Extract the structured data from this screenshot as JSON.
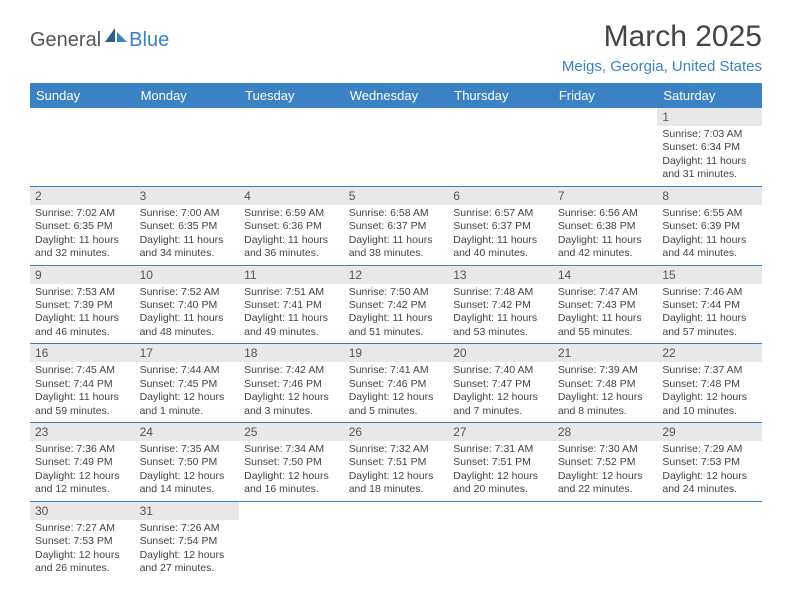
{
  "logo": {
    "general": "General",
    "blue": "Blue"
  },
  "title": "March 2025",
  "location": "Meigs, Georgia, United States",
  "day_headers": [
    "Sunday",
    "Monday",
    "Tuesday",
    "Wednesday",
    "Thursday",
    "Friday",
    "Saturday"
  ],
  "colors": {
    "header_bg": "#3b82c4",
    "header_text": "#ffffff",
    "daynum_bg": "#e8e8e8",
    "border": "#3b82c4",
    "accent": "#3b82c4"
  },
  "weeks": [
    [
      null,
      null,
      null,
      null,
      null,
      null,
      {
        "n": "1",
        "sunrise": "Sunrise: 7:03 AM",
        "sunset": "Sunset: 6:34 PM",
        "daylight": "Daylight: 11 hours and 31 minutes."
      }
    ],
    [
      {
        "n": "2",
        "sunrise": "Sunrise: 7:02 AM",
        "sunset": "Sunset: 6:35 PM",
        "daylight": "Daylight: 11 hours and 32 minutes."
      },
      {
        "n": "3",
        "sunrise": "Sunrise: 7:00 AM",
        "sunset": "Sunset: 6:35 PM",
        "daylight": "Daylight: 11 hours and 34 minutes."
      },
      {
        "n": "4",
        "sunrise": "Sunrise: 6:59 AM",
        "sunset": "Sunset: 6:36 PM",
        "daylight": "Daylight: 11 hours and 36 minutes."
      },
      {
        "n": "5",
        "sunrise": "Sunrise: 6:58 AM",
        "sunset": "Sunset: 6:37 PM",
        "daylight": "Daylight: 11 hours and 38 minutes."
      },
      {
        "n": "6",
        "sunrise": "Sunrise: 6:57 AM",
        "sunset": "Sunset: 6:37 PM",
        "daylight": "Daylight: 11 hours and 40 minutes."
      },
      {
        "n": "7",
        "sunrise": "Sunrise: 6:56 AM",
        "sunset": "Sunset: 6:38 PM",
        "daylight": "Daylight: 11 hours and 42 minutes."
      },
      {
        "n": "8",
        "sunrise": "Sunrise: 6:55 AM",
        "sunset": "Sunset: 6:39 PM",
        "daylight": "Daylight: 11 hours and 44 minutes."
      }
    ],
    [
      {
        "n": "9",
        "sunrise": "Sunrise: 7:53 AM",
        "sunset": "Sunset: 7:39 PM",
        "daylight": "Daylight: 11 hours and 46 minutes."
      },
      {
        "n": "10",
        "sunrise": "Sunrise: 7:52 AM",
        "sunset": "Sunset: 7:40 PM",
        "daylight": "Daylight: 11 hours and 48 minutes."
      },
      {
        "n": "11",
        "sunrise": "Sunrise: 7:51 AM",
        "sunset": "Sunset: 7:41 PM",
        "daylight": "Daylight: 11 hours and 49 minutes."
      },
      {
        "n": "12",
        "sunrise": "Sunrise: 7:50 AM",
        "sunset": "Sunset: 7:42 PM",
        "daylight": "Daylight: 11 hours and 51 minutes."
      },
      {
        "n": "13",
        "sunrise": "Sunrise: 7:48 AM",
        "sunset": "Sunset: 7:42 PM",
        "daylight": "Daylight: 11 hours and 53 minutes."
      },
      {
        "n": "14",
        "sunrise": "Sunrise: 7:47 AM",
        "sunset": "Sunset: 7:43 PM",
        "daylight": "Daylight: 11 hours and 55 minutes."
      },
      {
        "n": "15",
        "sunrise": "Sunrise: 7:46 AM",
        "sunset": "Sunset: 7:44 PM",
        "daylight": "Daylight: 11 hours and 57 minutes."
      }
    ],
    [
      {
        "n": "16",
        "sunrise": "Sunrise: 7:45 AM",
        "sunset": "Sunset: 7:44 PM",
        "daylight": "Daylight: 11 hours and 59 minutes."
      },
      {
        "n": "17",
        "sunrise": "Sunrise: 7:44 AM",
        "sunset": "Sunset: 7:45 PM",
        "daylight": "Daylight: 12 hours and 1 minute."
      },
      {
        "n": "18",
        "sunrise": "Sunrise: 7:42 AM",
        "sunset": "Sunset: 7:46 PM",
        "daylight": "Daylight: 12 hours and 3 minutes."
      },
      {
        "n": "19",
        "sunrise": "Sunrise: 7:41 AM",
        "sunset": "Sunset: 7:46 PM",
        "daylight": "Daylight: 12 hours and 5 minutes."
      },
      {
        "n": "20",
        "sunrise": "Sunrise: 7:40 AM",
        "sunset": "Sunset: 7:47 PM",
        "daylight": "Daylight: 12 hours and 7 minutes."
      },
      {
        "n": "21",
        "sunrise": "Sunrise: 7:39 AM",
        "sunset": "Sunset: 7:48 PM",
        "daylight": "Daylight: 12 hours and 8 minutes."
      },
      {
        "n": "22",
        "sunrise": "Sunrise: 7:37 AM",
        "sunset": "Sunset: 7:48 PM",
        "daylight": "Daylight: 12 hours and 10 minutes."
      }
    ],
    [
      {
        "n": "23",
        "sunrise": "Sunrise: 7:36 AM",
        "sunset": "Sunset: 7:49 PM",
        "daylight": "Daylight: 12 hours and 12 minutes."
      },
      {
        "n": "24",
        "sunrise": "Sunrise: 7:35 AM",
        "sunset": "Sunset: 7:50 PM",
        "daylight": "Daylight: 12 hours and 14 minutes."
      },
      {
        "n": "25",
        "sunrise": "Sunrise: 7:34 AM",
        "sunset": "Sunset: 7:50 PM",
        "daylight": "Daylight: 12 hours and 16 minutes."
      },
      {
        "n": "26",
        "sunrise": "Sunrise: 7:32 AM",
        "sunset": "Sunset: 7:51 PM",
        "daylight": "Daylight: 12 hours and 18 minutes."
      },
      {
        "n": "27",
        "sunrise": "Sunrise: 7:31 AM",
        "sunset": "Sunset: 7:51 PM",
        "daylight": "Daylight: 12 hours and 20 minutes."
      },
      {
        "n": "28",
        "sunrise": "Sunrise: 7:30 AM",
        "sunset": "Sunset: 7:52 PM",
        "daylight": "Daylight: 12 hours and 22 minutes."
      },
      {
        "n": "29",
        "sunrise": "Sunrise: 7:29 AM",
        "sunset": "Sunset: 7:53 PM",
        "daylight": "Daylight: 12 hours and 24 minutes."
      }
    ],
    [
      {
        "n": "30",
        "sunrise": "Sunrise: 7:27 AM",
        "sunset": "Sunset: 7:53 PM",
        "daylight": "Daylight: 12 hours and 26 minutes."
      },
      {
        "n": "31",
        "sunrise": "Sunrise: 7:26 AM",
        "sunset": "Sunset: 7:54 PM",
        "daylight": "Daylight: 12 hours and 27 minutes."
      },
      null,
      null,
      null,
      null,
      null
    ]
  ]
}
